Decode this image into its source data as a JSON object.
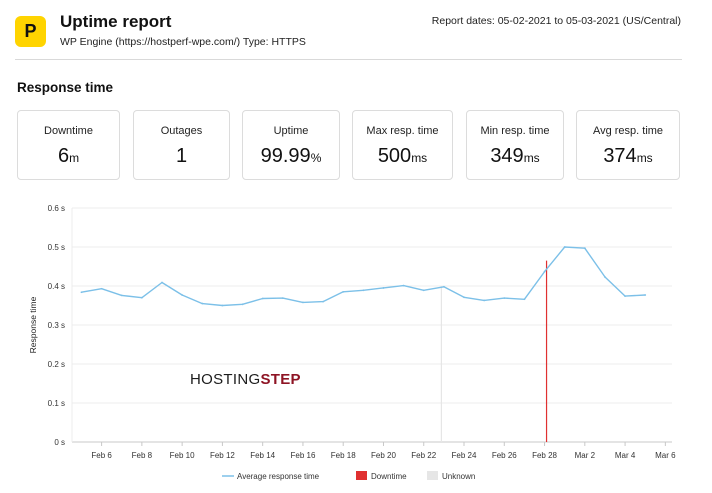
{
  "header": {
    "logo_glyph": "P",
    "title": "Uptime report",
    "subtitle": "WP Engine (https://hostperf-wpe.com/) Type: HTTPS",
    "report_dates": "Report dates: 05-02-2021 to 05-03-2021 (US/Central)"
  },
  "section_title": "Response time",
  "stats": [
    {
      "label": "Downtime",
      "value": "6",
      "unit": "m"
    },
    {
      "label": "Outages",
      "value": "1",
      "unit": ""
    },
    {
      "label": "Uptime",
      "value": "99.99",
      "unit": "%"
    },
    {
      "label": "Max resp. time",
      "value": "500",
      "unit": "ms"
    },
    {
      "label": "Min resp. time",
      "value": "349",
      "unit": "ms"
    },
    {
      "label": "Avg resp. time",
      "value": "374",
      "unit": "ms"
    }
  ],
  "watermark": {
    "part1": "HOSTING",
    "part2": "STEP"
  },
  "colors": {
    "line": "#7cc0e8",
    "downtime": "#e03030",
    "unknown": "#e6e6e6",
    "accent": "#ffd400"
  },
  "chart_data": {
    "type": "line",
    "ylabel": "Response time",
    "ylim": [
      0,
      0.6
    ],
    "y_ticks": [
      "0 s",
      "0.1 s",
      "0.2 s",
      "0.3 s",
      "0.4 s",
      "0.5 s",
      "0.6 s"
    ],
    "x_ticks": [
      "Feb 6",
      "Feb 8",
      "Feb 10",
      "Feb 12",
      "Feb 14",
      "Feb 16",
      "Feb 18",
      "Feb 20",
      "Feb 22",
      "Feb 24",
      "Feb 26",
      "Feb 28",
      "Mar 2",
      "Mar 4",
      "Mar 6"
    ],
    "x_range": [
      "Feb 5",
      "Mar 6"
    ],
    "series": [
      {
        "name": "Average response time",
        "x": [
          "Feb 5",
          "Feb 6",
          "Feb 7",
          "Feb 8",
          "Feb 9",
          "Feb 10",
          "Feb 11",
          "Feb 12",
          "Feb 13",
          "Feb 14",
          "Feb 15",
          "Feb 16",
          "Feb 17",
          "Feb 18",
          "Feb 19",
          "Feb 20",
          "Feb 21",
          "Feb 22",
          "Feb 23",
          "Feb 24",
          "Feb 25",
          "Feb 26",
          "Feb 27",
          "Feb 28",
          "Mar 1",
          "Mar 2",
          "Mar 3",
          "Mar 4",
          "Mar 5"
        ],
        "values": [
          0.384,
          0.393,
          0.376,
          0.37,
          0.409,
          0.377,
          0.355,
          0.35,
          0.353,
          0.368,
          0.369,
          0.358,
          0.36,
          0.385,
          0.389,
          0.395,
          0.401,
          0.389,
          0.398,
          0.371,
          0.363,
          0.369,
          0.366,
          0.437,
          0.5,
          0.497,
          0.423,
          0.374,
          0.377
        ]
      }
    ],
    "downtime_at": "Feb 28",
    "unknown_at": "Feb 23",
    "legend": [
      {
        "label": "Average response time",
        "kind": "line"
      },
      {
        "label": "Downtime",
        "kind": "box"
      },
      {
        "label": "Unknown",
        "kind": "box"
      }
    ],
    "legend_position": "bottom",
    "grid": true
  }
}
